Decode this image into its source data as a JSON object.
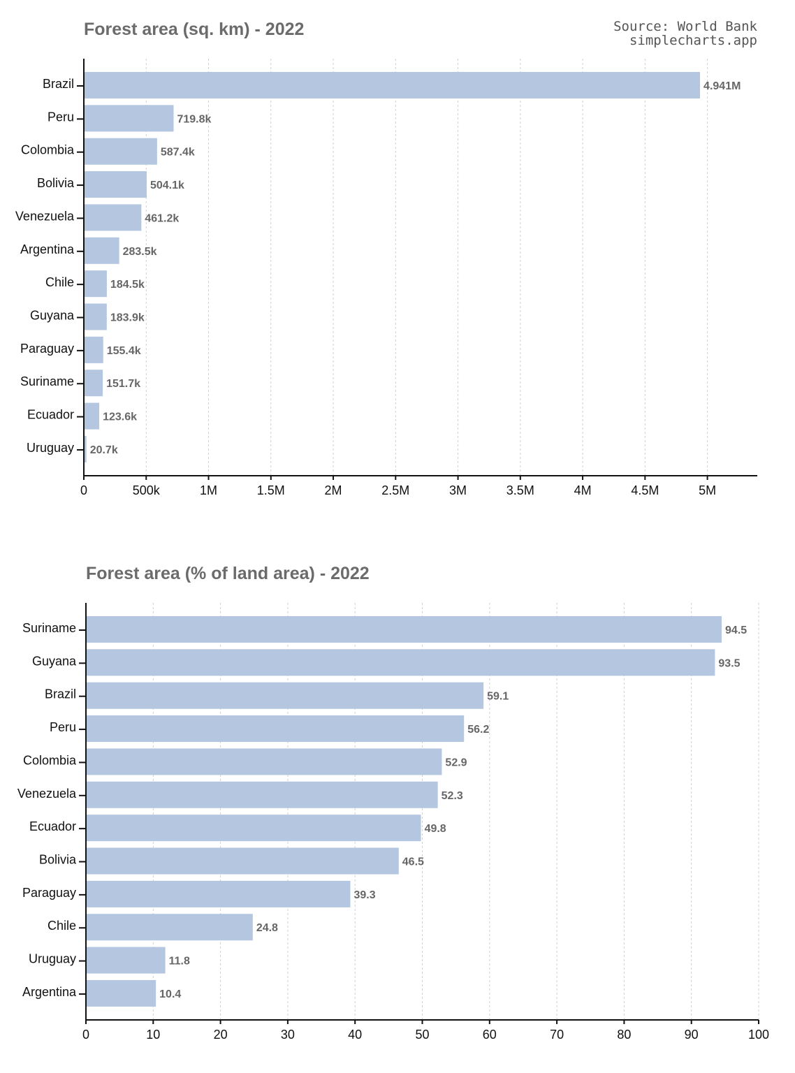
{
  "source": {
    "line1": "Source: World Bank",
    "line2": "simplecharts.app"
  },
  "chart_data": [
    {
      "type": "bar",
      "orientation": "horizontal",
      "title": "Forest area (sq. km) - 2022",
      "categories": [
        "Brazil",
        "Peru",
        "Colombia",
        "Bolivia",
        "Venezuela",
        "Argentina",
        "Chile",
        "Guyana",
        "Paraguay",
        "Suriname",
        "Ecuador",
        "Uruguay"
      ],
      "values": [
        4941000,
        719800,
        587400,
        504100,
        461200,
        283500,
        184500,
        183900,
        155400,
        151700,
        123600,
        20700
      ],
      "value_labels": [
        "4.941M",
        "719.8k",
        "587.4k",
        "504.1k",
        "461.2k",
        "283.5k",
        "184.5k",
        "183.9k",
        "155.4k",
        "151.7k",
        "123.6k",
        "20.7k"
      ],
      "xlim": [
        0,
        5400000
      ],
      "xticks": [
        0,
        500000,
        1000000,
        1500000,
        2000000,
        2500000,
        3000000,
        3500000,
        4000000,
        4500000,
        5000000
      ],
      "xtick_labels": [
        "0",
        "500k",
        "1M",
        "1.5M",
        "2M",
        "2.5M",
        "3M",
        "3.5M",
        "4M",
        "4.5M",
        "5M"
      ],
      "grid": true,
      "bar_color": "#b4c6e0"
    },
    {
      "type": "bar",
      "orientation": "horizontal",
      "title": "Forest area (% of land area) - 2022",
      "categories": [
        "Suriname",
        "Guyana",
        "Brazil",
        "Peru",
        "Colombia",
        "Venezuela",
        "Ecuador",
        "Bolivia",
        "Paraguay",
        "Chile",
        "Uruguay",
        "Argentina"
      ],
      "values": [
        94.5,
        93.5,
        59.1,
        56.2,
        52.9,
        52.3,
        49.8,
        46.5,
        39.3,
        24.8,
        11.8,
        10.4
      ],
      "value_labels": [
        "94.5",
        "93.5",
        "59.1",
        "56.2",
        "52.9",
        "52.3",
        "49.8",
        "46.5",
        "39.3",
        "24.8",
        "11.8",
        "10.4"
      ],
      "xlim": [
        0,
        100
      ],
      "xticks": [
        0,
        10,
        20,
        30,
        40,
        50,
        60,
        70,
        80,
        90,
        100
      ],
      "xtick_labels": [
        "0",
        "10",
        "20",
        "30",
        "40",
        "50",
        "60",
        "70",
        "80",
        "90",
        "100"
      ],
      "grid": true,
      "bar_color": "#b4c6e0"
    }
  ]
}
